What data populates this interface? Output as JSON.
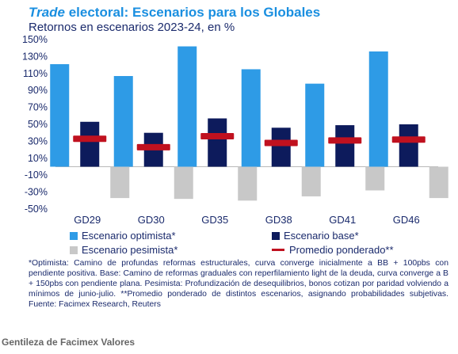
{
  "header": {
    "title_em": "Trade",
    "title_rest": " electoral: Escenarios para los Globales",
    "subtitle": "Retornos en escenarios 2023-24, en %"
  },
  "chart_data": {
    "type": "bar",
    "categories": [
      "GD29",
      "GD30",
      "GD35",
      "GD38",
      "GD41",
      "GD46"
    ],
    "y_ticks": [
      "150%",
      "130%",
      "110%",
      "90%",
      "70%",
      "50%",
      "30%",
      "10%",
      "-10%",
      "-30%",
      "-50%"
    ],
    "ylim": [
      -50,
      150
    ],
    "series": [
      {
        "name": "Escenario optimista*",
        "color": "#2e9be6",
        "values": [
          121,
          107,
          142,
          115,
          98,
          136
        ]
      },
      {
        "name": "Escenario base*",
        "color": "#0d1b5c",
        "values": [
          53,
          40,
          57,
          46,
          49,
          50
        ]
      },
      {
        "name": "Escenario pesimista*",
        "color": "#c8c8c8",
        "values": [
          -37,
          -38,
          -40,
          -35,
          -28,
          -37
        ]
      },
      {
        "name": "Promedio ponderado**",
        "color": "#c0111f",
        "type": "marker",
        "values": [
          33,
          23,
          36,
          28,
          31,
          32
        ]
      }
    ],
    "grid": false,
    "legend_position": "bottom"
  },
  "footnote": "*Optimista: Camino de profundas reformas estructurales, curva converge inicialmente a BB + 100pbs con pendiente positiva. Base: Camino de reformas graduales con reperfilamiento light de la deuda, curva converge a B + 150pbs con pendiente plana. Pesimista: Profundización de desequilibrios, bonos cotizan por paridad volviendo a mínimos de junio-julio. **Promedio ponderado de distintos escenarios, asignando probabilidades subjetivas. Fuente: Facimex Research, Reuters",
  "credit": "Gentileza de Facimex Valores"
}
